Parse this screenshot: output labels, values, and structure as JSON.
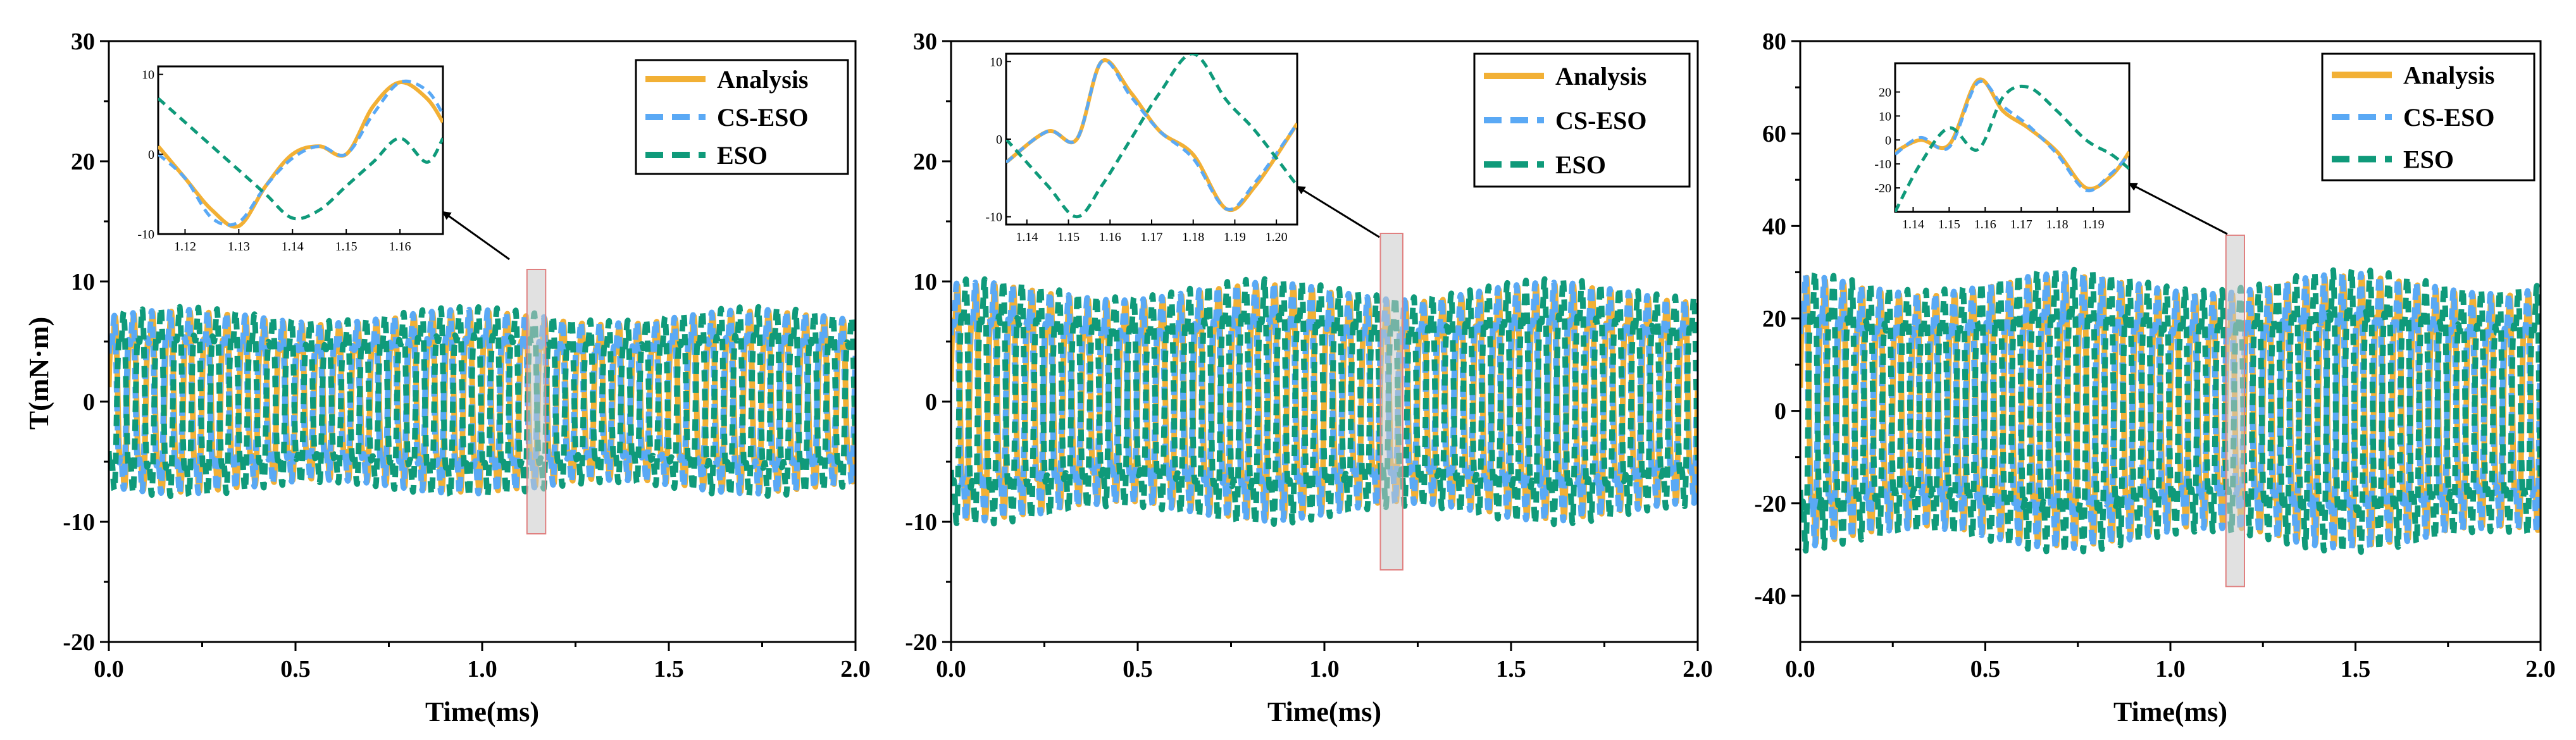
{
  "colors": {
    "analysis": "#F2B035",
    "cs_eso": "#5AA9F5",
    "eso": "#0F9A7A",
    "zoom_box": "#E08080",
    "arrow": "#000000"
  },
  "chart_data": [
    {
      "type": "line",
      "xlabel": "Time(ms)",
      "ylabel": "T(mN·m)",
      "xlim": [
        0.0,
        2.0
      ],
      "ylim": [
        -20,
        30
      ],
      "xticks": [
        "0.0",
        "0.5",
        "1.0",
        "1.5",
        "2.0"
      ],
      "yticks": [
        "-20",
        "-10",
        "0",
        "10",
        "20",
        "30"
      ],
      "oscillation": {
        "amplitude": 8.5,
        "cycles": 40
      },
      "legend": [
        "Analysis",
        "CS-ESO",
        "ESO"
      ],
      "zoom_region": {
        "x": [
          1.12,
          1.17
        ],
        "y": [
          -11,
          11
        ]
      },
      "inset": {
        "xlim": [
          1.115,
          1.168
        ],
        "ylim": [
          -10,
          11
        ],
        "xticks": [
          "1.12",
          "1.13",
          "1.14",
          "1.15",
          "1.16"
        ],
        "yticks": [
          "-10",
          "0",
          "10"
        ],
        "series": [
          {
            "name": "Analysis",
            "x": [
              1.115,
              1.12,
              1.125,
              1.13,
              1.135,
              1.14,
              1.145,
              1.15,
              1.155,
              1.16,
              1.165,
              1.168
            ],
            "y": [
              1,
              -3,
              -7,
              -9,
              -4,
              0,
              1,
              0,
              6,
              9,
              7,
              4
            ]
          },
          {
            "name": "CS-ESO",
            "x": [
              1.115,
              1.12,
              1.125,
              1.13,
              1.135,
              1.14,
              1.145,
              1.15,
              1.155,
              1.16,
              1.165,
              1.168
            ],
            "y": [
              0,
              -3,
              -8,
              -8.5,
              -4,
              -0.5,
              1,
              0,
              5,
              9,
              8,
              5
            ]
          },
          {
            "name": "ESO",
            "x": [
              1.115,
              1.12,
              1.125,
              1.13,
              1.135,
              1.14,
              1.145,
              1.15,
              1.155,
              1.16,
              1.165,
              1.168
            ],
            "y": [
              7,
              4,
              1,
              -2,
              -5,
              -8,
              -7,
              -4,
              -1,
              2,
              -1,
              2
            ]
          }
        ]
      }
    },
    {
      "type": "line",
      "xlabel": "Time(ms)",
      "ylabel": "",
      "xlim": [
        0.0,
        2.0
      ],
      "ylim": [
        -20,
        30
      ],
      "xticks": [
        "0.0",
        "0.5",
        "1.0",
        "1.5",
        "2.0"
      ],
      "yticks": [
        "-20",
        "-10",
        "0",
        "10",
        "20",
        "30"
      ],
      "oscillation": {
        "amplitude": 11,
        "cycles": 40
      },
      "legend": [
        "Analysis",
        "CS-ESO",
        "ESO"
      ],
      "zoom_region": {
        "x": [
          1.15,
          1.21
        ],
        "y": [
          -14,
          14
        ]
      },
      "inset": {
        "xlim": [
          1.135,
          1.205
        ],
        "ylim": [
          -11,
          11
        ],
        "xticks": [
          "1.14",
          "1.15",
          "1.16",
          "1.17",
          "1.18",
          "1.19",
          "1.20"
        ],
        "yticks": [
          "-10",
          "0",
          "10"
        ],
        "series": [
          {
            "name": "Analysis",
            "x": [
              1.135,
              1.145,
              1.152,
              1.158,
              1.165,
              1.172,
              1.18,
              1.188,
              1.195,
              1.205
            ],
            "y": [
              -3,
              1,
              0,
              10,
              6,
              1,
              -2,
              -9,
              -6,
              2
            ]
          },
          {
            "name": "CS-ESO",
            "x": [
              1.135,
              1.145,
              1.152,
              1.158,
              1.165,
              1.172,
              1.18,
              1.188,
              1.195,
              1.205
            ],
            "y": [
              -3,
              1,
              0,
              10,
              5.5,
              1,
              -2.5,
              -9,
              -5.5,
              2
            ]
          },
          {
            "name": "ESO",
            "x": [
              1.135,
              1.145,
              1.152,
              1.158,
              1.165,
              1.172,
              1.18,
              1.188,
              1.195,
              1.205
            ],
            "y": [
              0,
              -6,
              -10,
              -6,
              0,
              6,
              11,
              5,
              1,
              -6
            ]
          }
        ]
      }
    },
    {
      "type": "line",
      "xlabel": "Time(ms)",
      "ylabel": "",
      "xlim": [
        0.0,
        2.0
      ],
      "ylim": [
        -50,
        80
      ],
      "xticks": [
        "0.0",
        "0.5",
        "1.0",
        "1.5",
        "2.0"
      ],
      "yticks": [
        "-40",
        "-20",
        "0",
        "20",
        "40",
        "60",
        "80"
      ],
      "oscillation": {
        "amplitude": 33,
        "cycles": 40
      },
      "legend": [
        "Analysis",
        "CS-ESO",
        "ESO"
      ],
      "zoom_region": {
        "x": [
          1.15,
          1.2
        ],
        "y": [
          -38,
          38
        ]
      },
      "inset": {
        "xlim": [
          1.135,
          1.2
        ],
        "ylim": [
          -30,
          32
        ],
        "xticks": [
          "1.14",
          "1.15",
          "1.16",
          "1.17",
          "1.18",
          "1.19"
        ],
        "yticks": [
          "-20",
          "-10",
          "0",
          "10",
          "20"
        ],
        "series": [
          {
            "name": "Analysis",
            "x": [
              1.135,
              1.142,
              1.15,
              1.158,
              1.165,
              1.172,
              1.18,
              1.188,
              1.195,
              1.2
            ],
            "y": [
              -5,
              0,
              -2,
              25,
              12,
              5,
              -5,
              -20,
              -15,
              -5
            ]
          },
          {
            "name": "CS-ESO",
            "x": [
              1.135,
              1.142,
              1.15,
              1.158,
              1.165,
              1.172,
              1.18,
              1.188,
              1.195,
              1.2
            ],
            "y": [
              -6,
              1,
              -3,
              24,
              14,
              6,
              -6,
              -21,
              -14,
              -6
            ]
          },
          {
            "name": "ESO",
            "x": [
              1.135,
              1.142,
              1.15,
              1.158,
              1.165,
              1.172,
              1.18,
              1.188,
              1.195,
              1.2
            ],
            "y": [
              -30,
              -10,
              5,
              -4,
              18,
              22,
              12,
              0,
              -6,
              -12
            ]
          }
        ]
      }
    }
  ]
}
